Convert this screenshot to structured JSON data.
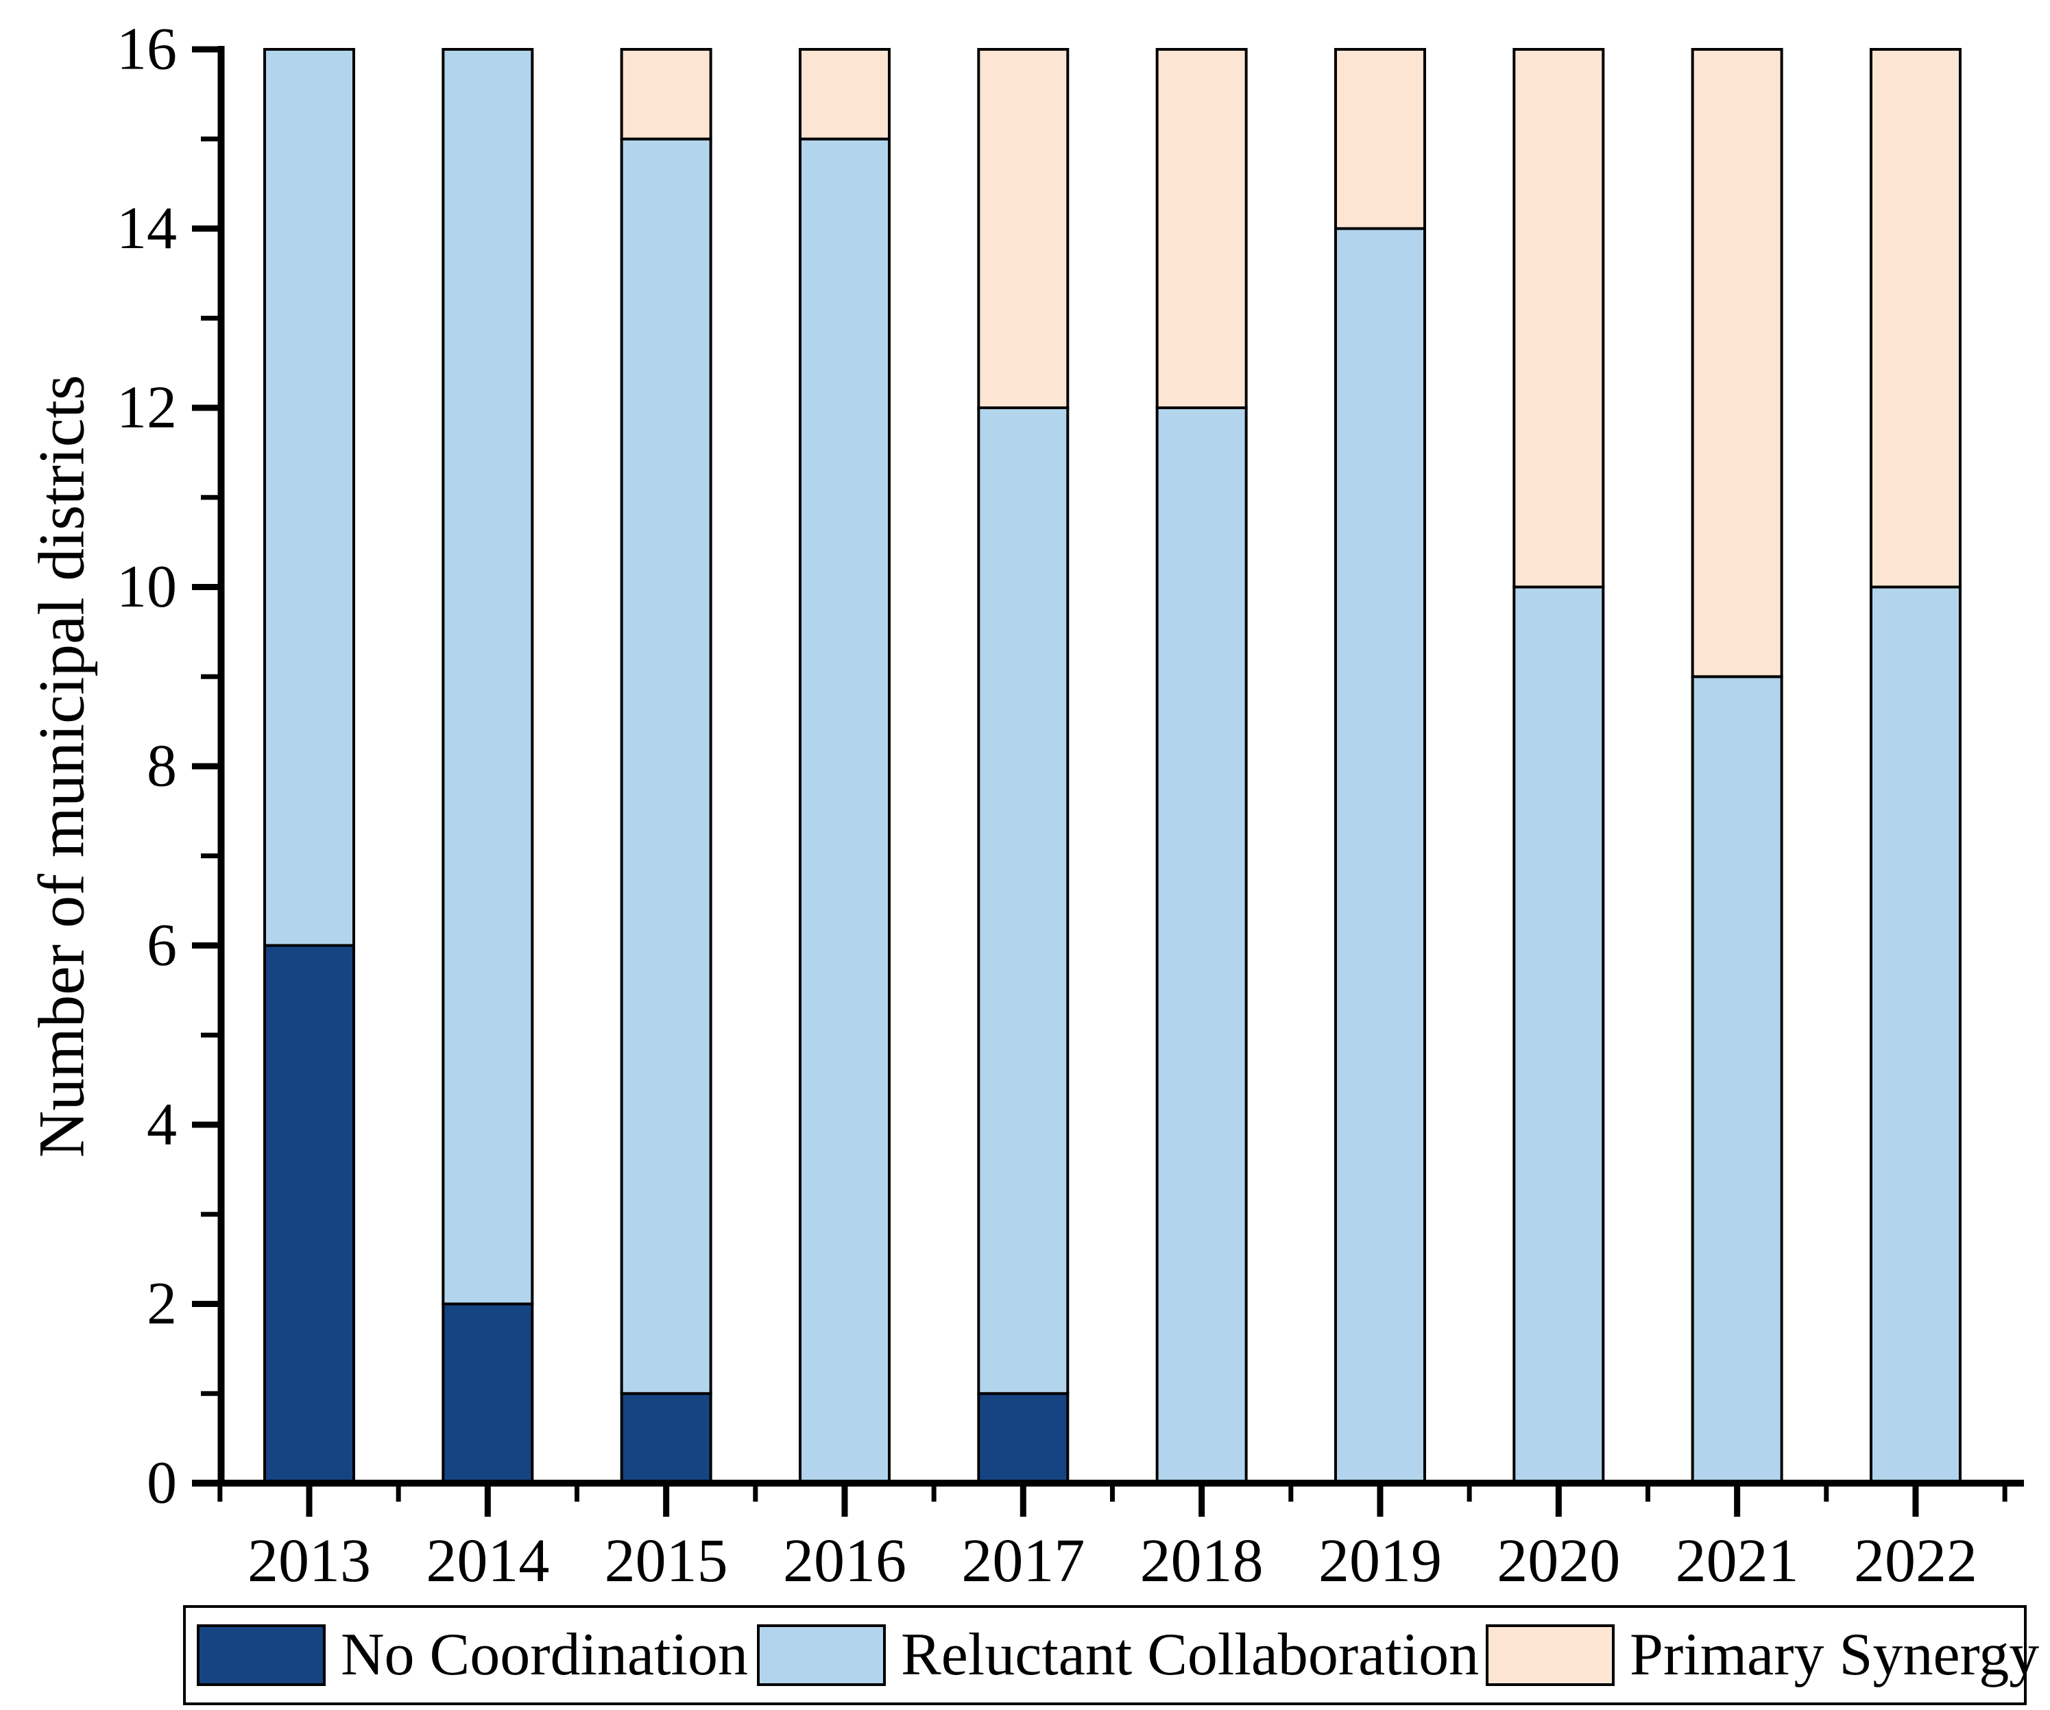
{
  "chart_data": {
    "type": "bar",
    "stacked": true,
    "title": "",
    "xlabel": "",
    "ylabel": "Number of municipal districts",
    "categories": [
      "2013",
      "2014",
      "2015",
      "2016",
      "2017",
      "2018",
      "2019",
      "2020",
      "2021",
      "2022"
    ],
    "series": [
      {
        "name": "No Coordination",
        "color": "#164483",
        "values": [
          6,
          2,
          1,
          0,
          1,
          0,
          0,
          0,
          0,
          0
        ]
      },
      {
        "name": "Reluctant Collaboration",
        "color": "#b2d4ec",
        "values": [
          10,
          14,
          14,
          15,
          11,
          12,
          14,
          10,
          9,
          10
        ]
      },
      {
        "name": "Primary Synergy",
        "color": "#fde5d3",
        "values": [
          0,
          0,
          1,
          1,
          4,
          4,
          2,
          6,
          7,
          6
        ]
      }
    ],
    "ylim": [
      0,
      16
    ],
    "ytick_major_step": 2,
    "ytick_minor_step": 1,
    "ytick_labels": [
      "0",
      "2",
      "4",
      "6",
      "8",
      "10",
      "12",
      "14",
      "16"
    ],
    "grid": false,
    "legend_position": "bottom",
    "bar_outline_color": "#000000",
    "axis_color": "#000000",
    "background_color": "#ffffff"
  }
}
